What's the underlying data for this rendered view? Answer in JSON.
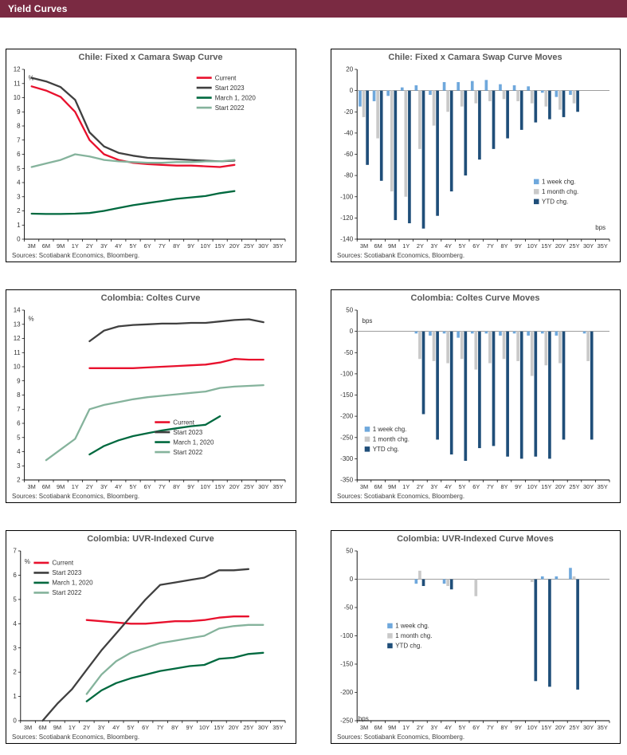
{
  "header": {
    "title": "Yield Curves",
    "bg_color": "#7a2a42"
  },
  "chart_data": [
    {
      "type": "line",
      "title": "Chile: Fixed x Camara Swap Curve",
      "sources": "Sources: Scotiabank Economics, Bloomberg.",
      "unit_label": {
        "text": "%",
        "fx": 0.015,
        "fy": 0.05,
        "anchor": "start"
      },
      "categories": [
        "3M",
        "6M",
        "9M",
        "1Y",
        "2Y",
        "3Y",
        "4Y",
        "5Y",
        "6Y",
        "7Y",
        "8Y",
        "9Y",
        "10Y",
        "15Y",
        "20Y",
        "25Y",
        "30Y",
        "35Y"
      ],
      "ylim": [
        0,
        12
      ],
      "ytick_step": 1,
      "legend": {
        "style": "line",
        "fx": 0.66,
        "fy": 0.05
      },
      "series": [
        {
          "name": "Current",
          "color": "#e8112d",
          "values": [
            10.8,
            10.5,
            10.05,
            9.0,
            7.0,
            6.0,
            5.6,
            5.4,
            5.3,
            5.25,
            5.2,
            5.2,
            5.15,
            5.1,
            5.25,
            null,
            null,
            null
          ]
        },
        {
          "name": "Start 2023",
          "color": "#404040",
          "values": [
            11.4,
            11.15,
            10.75,
            9.85,
            7.55,
            6.55,
            6.1,
            5.9,
            5.75,
            5.7,
            5.65,
            5.6,
            5.55,
            5.5,
            5.55,
            null,
            null,
            null
          ]
        },
        {
          "name": "March 1, 2020",
          "color": "#00693f",
          "values": [
            1.8,
            1.78,
            1.78,
            1.8,
            1.85,
            2.0,
            2.2,
            2.4,
            2.55,
            2.7,
            2.85,
            2.95,
            3.05,
            3.25,
            3.4,
            null,
            null,
            null
          ]
        },
        {
          "name": "Start 2022",
          "color": "#85b39c",
          "values": [
            5.1,
            5.35,
            5.6,
            6.0,
            5.85,
            5.6,
            5.5,
            5.45,
            5.4,
            5.4,
            5.45,
            5.45,
            5.5,
            5.5,
            5.6,
            null,
            null,
            null
          ]
        }
      ]
    },
    {
      "type": "bar",
      "title": "Chile: Fixed x Camara Swap Curve Moves",
      "sources": "Sources: Scotiabank Economics, Bloomberg.",
      "unit_label": {
        "text": "bps",
        "fx": 0.985,
        "fy": 0.93,
        "anchor": "end"
      },
      "categories": [
        "3M",
        "6M",
        "9M",
        "1Y",
        "2Y",
        "3Y",
        "4Y",
        "5Y",
        "6Y",
        "7Y",
        "8Y",
        "9Y",
        "10Y",
        "15Y",
        "20Y",
        "25Y",
        "30Y",
        "35Y"
      ],
      "ylim": [
        -140,
        20
      ],
      "ytick_step": 20,
      "legend": {
        "style": "swatch",
        "fx": 0.7,
        "fy": 0.66
      },
      "series": [
        {
          "name": "1 week chg.",
          "color": "#6fa8dc",
          "values": [
            -15,
            -10,
            -5,
            3,
            5,
            -4,
            8,
            8,
            9,
            10,
            6,
            5,
            4,
            -2,
            -6,
            -4,
            null,
            null
          ]
        },
        {
          "name": "1 month chg.",
          "color": "#c9c9c9",
          "values": [
            -25,
            -45,
            -95,
            -100,
            -55,
            -33,
            -20,
            -15,
            -12,
            -10,
            -8,
            -10,
            -12,
            -15,
            -18,
            -12,
            null,
            null
          ]
        },
        {
          "name": "YTD chg.",
          "color": "#1f4e79",
          "values": [
            -70,
            -85,
            -122,
            -125,
            -130,
            -118,
            -95,
            -80,
            -65,
            -55,
            -45,
            -37,
            -30,
            -27,
            -25,
            -20,
            null,
            null
          ]
        }
      ]
    },
    {
      "type": "line",
      "title": "Colombia: Coltes Curve",
      "sources": "Sources: Scotiabank Economics, Bloomberg.",
      "unit_label": {
        "text": "%",
        "fx": 0.015,
        "fy": 0.05,
        "anchor": "start"
      },
      "categories": [
        "3M",
        "6M",
        "9M",
        "1Y",
        "2Y",
        "3Y",
        "4Y",
        "5Y",
        "6Y",
        "7Y",
        "8Y",
        "9Y",
        "10Y",
        "15Y",
        "20Y",
        "25Y",
        "30Y",
        "35Y"
      ],
      "ylim": [
        2,
        14
      ],
      "ytick_step": 1,
      "legend": {
        "style": "line",
        "fx": 0.5,
        "fy": 0.66
      },
      "series": [
        {
          "name": "Current",
          "color": "#e8112d",
          "values": [
            null,
            null,
            null,
            null,
            9.9,
            9.9,
            9.9,
            9.9,
            9.95,
            10.0,
            10.05,
            10.1,
            10.15,
            10.3,
            10.55,
            10.5,
            10.5,
            null
          ]
        },
        {
          "name": "Start 2023",
          "color": "#404040",
          "values": [
            null,
            null,
            null,
            null,
            11.8,
            12.55,
            12.85,
            12.95,
            13.0,
            13.05,
            13.05,
            13.1,
            13.1,
            13.2,
            13.3,
            13.35,
            13.15,
            null
          ]
        },
        {
          "name": "March 1, 2020",
          "color": "#00693f",
          "values": [
            null,
            null,
            null,
            null,
            3.8,
            4.4,
            4.8,
            5.1,
            5.3,
            5.5,
            5.65,
            5.8,
            5.9,
            6.5,
            null,
            null,
            null,
            null
          ]
        },
        {
          "name": "Start 2022",
          "color": "#85b39c",
          "values": [
            null,
            3.4,
            4.15,
            4.9,
            7.0,
            7.3,
            7.5,
            7.7,
            7.85,
            7.95,
            8.05,
            8.15,
            8.25,
            8.5,
            8.6,
            8.65,
            8.7,
            null
          ]
        }
      ]
    },
    {
      "type": "bar",
      "title": "Colombia: Coltes Curve Moves",
      "sources": "Sources: Scotiabank Economics, Bloomberg.",
      "unit_label": {
        "text": "bps",
        "fx": 0.02,
        "fy": 0.06,
        "anchor": "start"
      },
      "categories": [
        "3M",
        "6M",
        "9M",
        "1Y",
        "2Y",
        "3Y",
        "4Y",
        "5Y",
        "6Y",
        "7Y",
        "8Y",
        "9Y",
        "10Y",
        "15Y",
        "20Y",
        "25Y",
        "30Y",
        "35Y"
      ],
      "ylim": [
        -350,
        50
      ],
      "ytick_step": 50,
      "legend": {
        "style": "swatch",
        "fx": 0.03,
        "fy": 0.7
      },
      "series": [
        {
          "name": "1 week chg.",
          "color": "#6fa8dc",
          "values": [
            null,
            null,
            null,
            null,
            -5,
            -10,
            -5,
            -15,
            -5,
            -5,
            -10,
            -5,
            -10,
            -5,
            -10,
            null,
            -5,
            null
          ]
        },
        {
          "name": "1 month chg.",
          "color": "#c9c9c9",
          "values": [
            null,
            null,
            null,
            null,
            -65,
            -70,
            -75,
            -65,
            -90,
            -75,
            -65,
            -70,
            -105,
            -80,
            -75,
            null,
            -70,
            null
          ]
        },
        {
          "name": "YTD chg.",
          "color": "#1f4e79",
          "values": [
            null,
            null,
            null,
            null,
            -195,
            -255,
            -290,
            -305,
            -275,
            -270,
            -295,
            -300,
            -295,
            -300,
            -255,
            null,
            -255,
            null
          ]
        }
      ]
    },
    {
      "type": "line",
      "title": "Colombia: UVR-Indexed Curve",
      "sources": "Sources: Scotiabank Economics, Bloomberg.",
      "unit_label": {
        "text": "%",
        "fx": 0.015,
        "fy": 0.06,
        "anchor": "start"
      },
      "categories": [
        "3M",
        "6M",
        "9M",
        "1Y",
        "2Y",
        "3Y",
        "4Y",
        "5Y",
        "6Y",
        "7Y",
        "8Y",
        "9Y",
        "10Y",
        "15Y",
        "20Y",
        "25Y",
        "30Y",
        "35Y"
      ],
      "ylim": [
        0,
        7
      ],
      "ytick_step": 1,
      "legend": {
        "style": "line",
        "fx": 0.05,
        "fy": 0.07
      },
      "series": [
        {
          "name": "Current",
          "color": "#e8112d",
          "values": [
            null,
            null,
            null,
            null,
            4.15,
            4.1,
            4.05,
            4.0,
            4.0,
            4.05,
            4.1,
            4.1,
            4.15,
            4.25,
            4.3,
            4.3,
            null,
            null
          ]
        },
        {
          "name": "Start 2023",
          "color": "#404040",
          "values": [
            null,
            0.0,
            0.7,
            1.3,
            2.1,
            2.9,
            3.6,
            4.3,
            5.0,
            5.6,
            5.7,
            5.8,
            5.9,
            6.2,
            6.2,
            6.25,
            null,
            null
          ]
        },
        {
          "name": "March 1, 2020",
          "color": "#00693f",
          "values": [
            null,
            null,
            null,
            null,
            0.8,
            1.25,
            1.55,
            1.75,
            1.9,
            2.05,
            2.15,
            2.25,
            2.3,
            2.55,
            2.6,
            2.75,
            2.8,
            null
          ]
        },
        {
          "name": "Start 2022",
          "color": "#85b39c",
          "values": [
            null,
            null,
            null,
            null,
            1.1,
            1.9,
            2.45,
            2.8,
            3.0,
            3.2,
            3.3,
            3.4,
            3.5,
            3.8,
            3.9,
            3.95,
            3.95,
            null
          ]
        }
      ]
    },
    {
      "type": "bar",
      "title": "Colombia: UVR-Indexed Curve Moves",
      "sources": "Sources: Scotiabank Economics, Bloomberg.",
      "unit_label": {
        "text": "bps",
        "fx": 0.005,
        "fy": 0.985,
        "anchor": "start"
      },
      "categories": [
        "3M",
        "6M",
        "9M",
        "1Y",
        "2Y",
        "3Y",
        "4Y",
        "5Y",
        "6Y",
        "7Y",
        "8Y",
        "9Y",
        "10Y",
        "15Y",
        "20Y",
        "25Y",
        "30Y",
        "35Y"
      ],
      "ylim": [
        -250,
        50
      ],
      "ytick_step": 50,
      "legend": {
        "style": "swatch",
        "fx": 0.12,
        "fy": 0.44
      },
      "series": [
        {
          "name": "1 week chg.",
          "color": "#6fa8dc",
          "values": [
            null,
            null,
            null,
            null,
            -8,
            null,
            -8,
            null,
            null,
            null,
            null,
            null,
            null,
            5,
            5,
            20,
            null,
            null
          ]
        },
        {
          "name": "1 month chg.",
          "color": "#c9c9c9",
          "values": [
            null,
            null,
            null,
            null,
            15,
            null,
            -12,
            null,
            -30,
            null,
            null,
            null,
            -5,
            null,
            null,
            5,
            null,
            null
          ]
        },
        {
          "name": "YTD chg.",
          "color": "#1f4e79",
          "values": [
            null,
            null,
            null,
            null,
            -12,
            null,
            -18,
            null,
            null,
            null,
            null,
            null,
            -180,
            -190,
            null,
            -195,
            null,
            null
          ]
        }
      ]
    }
  ]
}
